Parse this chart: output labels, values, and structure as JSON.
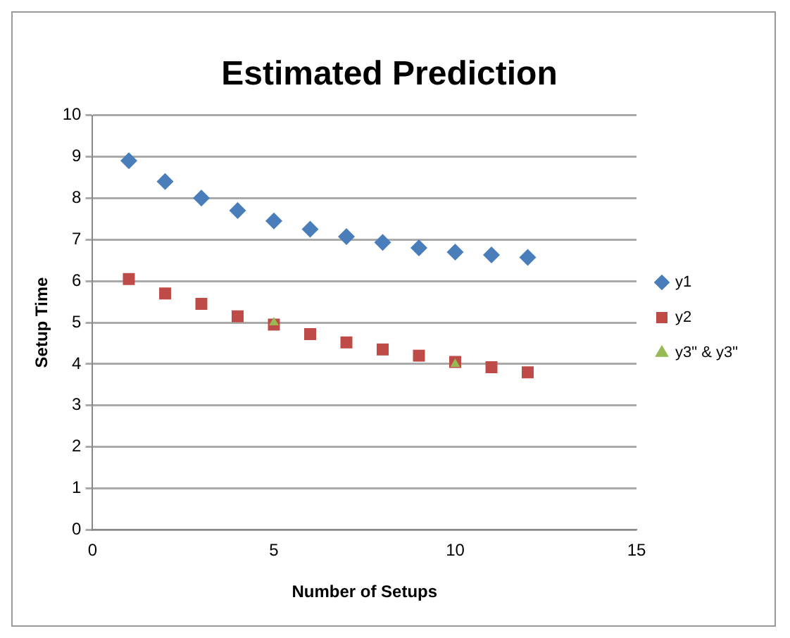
{
  "chart_data": {
    "type": "scatter",
    "title": "Estimated Prediction",
    "xlabel": "Number of Setups",
    "ylabel": "Setup Time",
    "xlim": [
      0,
      15
    ],
    "xticks": [
      0,
      5,
      10,
      15
    ],
    "ylim": [
      0,
      10
    ],
    "yticks": [
      0,
      1,
      2,
      3,
      4,
      5,
      6,
      7,
      8,
      9,
      10
    ],
    "grid": "y",
    "legend": "right",
    "series": [
      {
        "name": "y1",
        "color": "#4a7ebb",
        "marker": "diamond",
        "x": [
          1,
          2,
          3,
          4,
          5,
          6,
          7,
          8,
          9,
          10,
          11,
          12
        ],
        "values": [
          8.9,
          8.4,
          8.0,
          7.7,
          7.45,
          7.25,
          7.07,
          6.93,
          6.8,
          6.7,
          6.63,
          6.57
        ]
      },
      {
        "name": "y2",
        "color": "#be4b48",
        "marker": "square",
        "x": [
          1,
          2,
          3,
          4,
          5,
          6,
          7,
          8,
          9,
          10,
          11,
          12
        ],
        "values": [
          6.05,
          5.7,
          5.45,
          5.15,
          4.95,
          4.72,
          4.52,
          4.35,
          4.2,
          4.05,
          3.92,
          3.8
        ]
      },
      {
        "name": "y3\" & y3\"",
        "color": "#98b954",
        "marker": "triangle",
        "x": [
          5,
          10
        ],
        "values": [
          5,
          4
        ]
      }
    ]
  }
}
